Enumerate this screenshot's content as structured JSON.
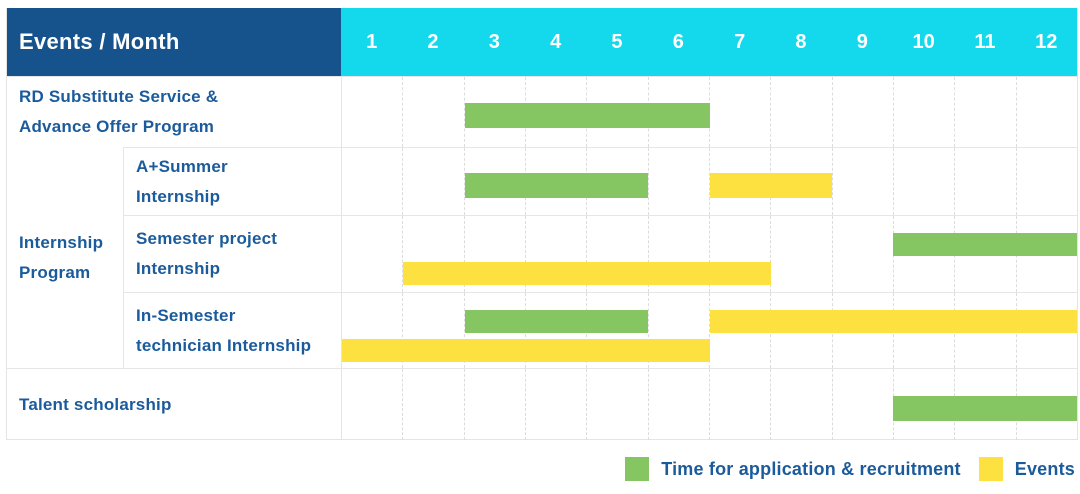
{
  "table": {
    "corner_header": "Events / Month",
    "months": [
      "1",
      "2",
      "3",
      "4",
      "5",
      "6",
      "7",
      "8",
      "9",
      "10",
      "11",
      "12"
    ],
    "groups": {
      "internship": {
        "label_lines": [
          "Internship",
          "Program"
        ]
      }
    },
    "rows": [
      {
        "id": "rd-substitute-service",
        "group": null,
        "label_lines": [
          "RD Substitute Service &",
          "Advance Offer Program"
        ],
        "lanes": 1,
        "bars": [
          {
            "kind": "recruitment",
            "start_month": 3,
            "end_month": 6,
            "lane": 0
          }
        ]
      },
      {
        "id": "a-plus-summer-internship",
        "group": "internship",
        "label_lines": [
          "A+Summer",
          "Internship"
        ],
        "lanes": 1,
        "bars": [
          {
            "kind": "recruitment",
            "start_month": 3,
            "end_month": 5,
            "lane": 0
          },
          {
            "kind": "events",
            "start_month": 7,
            "end_month": 8,
            "lane": 0
          }
        ]
      },
      {
        "id": "semester-project-internship",
        "group": "internship",
        "label_lines": [
          "Semester project",
          "Internship"
        ],
        "lanes": 2,
        "bars": [
          {
            "kind": "recruitment",
            "start_month": 10,
            "end_month": 12,
            "lane": 0
          },
          {
            "kind": "events",
            "start_month": 2,
            "end_month": 7,
            "lane": 1
          }
        ]
      },
      {
        "id": "in-semester-technician-internship",
        "group": "internship",
        "label_lines": [
          "In-Semester",
          "technician Internship"
        ],
        "lanes": 2,
        "bars": [
          {
            "kind": "recruitment",
            "start_month": 3,
            "end_month": 5,
            "lane": 0
          },
          {
            "kind": "events",
            "start_month": 7,
            "end_month": 12,
            "lane": 0
          },
          {
            "kind": "events",
            "start_month": 1,
            "end_month": 6,
            "lane": 1
          }
        ]
      },
      {
        "id": "talent-scholarship",
        "group": null,
        "label_lines": [
          "Talent scholarship"
        ],
        "lanes": 1,
        "bars": [
          {
            "kind": "recruitment",
            "start_month": 10,
            "end_month": 12,
            "lane": 0
          }
        ]
      }
    ]
  },
  "legend": [
    {
      "kind": "recruitment",
      "label": "Time for application & recruitment"
    },
    {
      "kind": "events",
      "label": "Events"
    }
  ],
  "colors": {
    "header_bg": "#16538D",
    "months_bg": "#14D8EC",
    "recruitment_green": "#85C662",
    "events_yellow": "#FDE140",
    "text_blue": "#1B5B9C",
    "grid_line": "#E4E4E4"
  },
  "chart_data": {
    "type": "table",
    "subtype": "gantt",
    "title": "Events / Month",
    "x_unit": "month",
    "x_ticks": [
      1,
      2,
      3,
      4,
      5,
      6,
      7,
      8,
      9,
      10,
      11,
      12
    ],
    "x_range": [
      1,
      12
    ],
    "legend": [
      "Time for application & recruitment",
      "Events"
    ],
    "legend_position": "bottom-right",
    "tasks": [
      {
        "row": "RD Substitute Service & Advance Offer Program",
        "series": "Time for application & recruitment",
        "start_month": 3,
        "end_month": 6
      },
      {
        "row": "A+Summer Internship",
        "series": "Time for application & recruitment",
        "start_month": 3,
        "end_month": 5
      },
      {
        "row": "A+Summer Internship",
        "series": "Events",
        "start_month": 7,
        "end_month": 8
      },
      {
        "row": "Semester project Internship",
        "series": "Time for application & recruitment",
        "start_month": 10,
        "end_month": 12
      },
      {
        "row": "Semester project Internship",
        "series": "Events",
        "start_month": 2,
        "end_month": 7
      },
      {
        "row": "In-Semester technician Internship",
        "series": "Time for application & recruitment",
        "start_month": 3,
        "end_month": 5
      },
      {
        "row": "In-Semester technician Internship",
        "series": "Events",
        "start_month": 7,
        "end_month": 12
      },
      {
        "row": "In-Semester technician Internship",
        "series": "Events",
        "start_month": 1,
        "end_month": 6
      },
      {
        "row": "Talent scholarship",
        "series": "Time for application & recruitment",
        "start_month": 10,
        "end_month": 12
      }
    ]
  }
}
